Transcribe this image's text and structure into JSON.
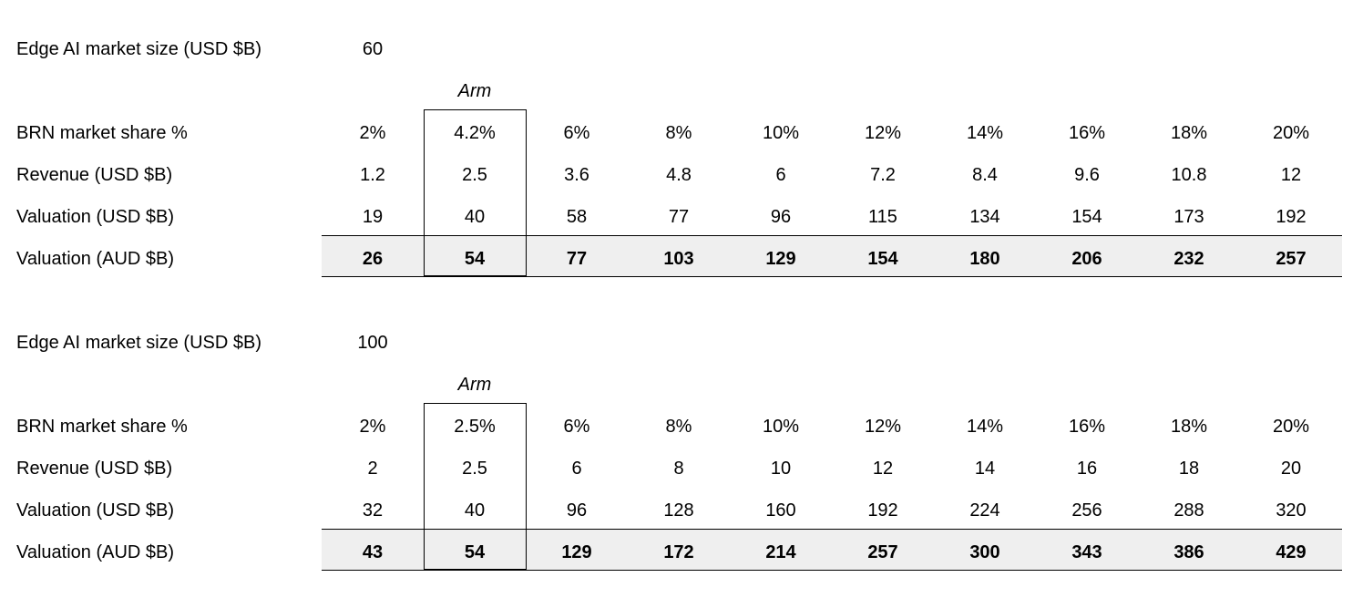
{
  "blocks": [
    {
      "market_size_label": "Edge AI market size (USD $B)",
      "market_size_value": "60",
      "annotation": "Arm",
      "rows": [
        {
          "label": "BRN market share %",
          "values": [
            "2%",
            "4.2%",
            "6%",
            "8%",
            "10%",
            "12%",
            "14%",
            "16%",
            "18%",
            "20%"
          ]
        },
        {
          "label": "Revenue (USD $B)",
          "values": [
            "1.2",
            "2.5",
            "3.6",
            "4.8",
            "6",
            "7.2",
            "8.4",
            "9.6",
            "10.8",
            "12"
          ]
        },
        {
          "label": "Valuation (USD $B)",
          "values": [
            "19",
            "40",
            "58",
            "77",
            "96",
            "115",
            "134",
            "154",
            "173",
            "192"
          ]
        },
        {
          "label": "Valuation (AUD $B)",
          "values": [
            "26",
            "54",
            "77",
            "103",
            "129",
            "154",
            "180",
            "206",
            "232",
            "257"
          ]
        }
      ]
    },
    {
      "market_size_label": "Edge AI market size (USD $B)",
      "market_size_value": "100",
      "annotation": "Arm",
      "rows": [
        {
          "label": "BRN market share %",
          "values": [
            "2%",
            "2.5%",
            "6%",
            "8%",
            "10%",
            "12%",
            "14%",
            "16%",
            "18%",
            "20%"
          ]
        },
        {
          "label": "Revenue (USD $B)",
          "values": [
            "2",
            "2.5",
            "6",
            "8",
            "10",
            "12",
            "14",
            "16",
            "18",
            "20"
          ]
        },
        {
          "label": "Valuation (USD $B)",
          "values": [
            "32",
            "40",
            "96",
            "128",
            "160",
            "192",
            "224",
            "256",
            "288",
            "320"
          ]
        },
        {
          "label": "Valuation (AUD $B)",
          "values": [
            "43",
            "54",
            "129",
            "172",
            "214",
            "257",
            "300",
            "343",
            "386",
            "429"
          ]
        }
      ]
    }
  ]
}
